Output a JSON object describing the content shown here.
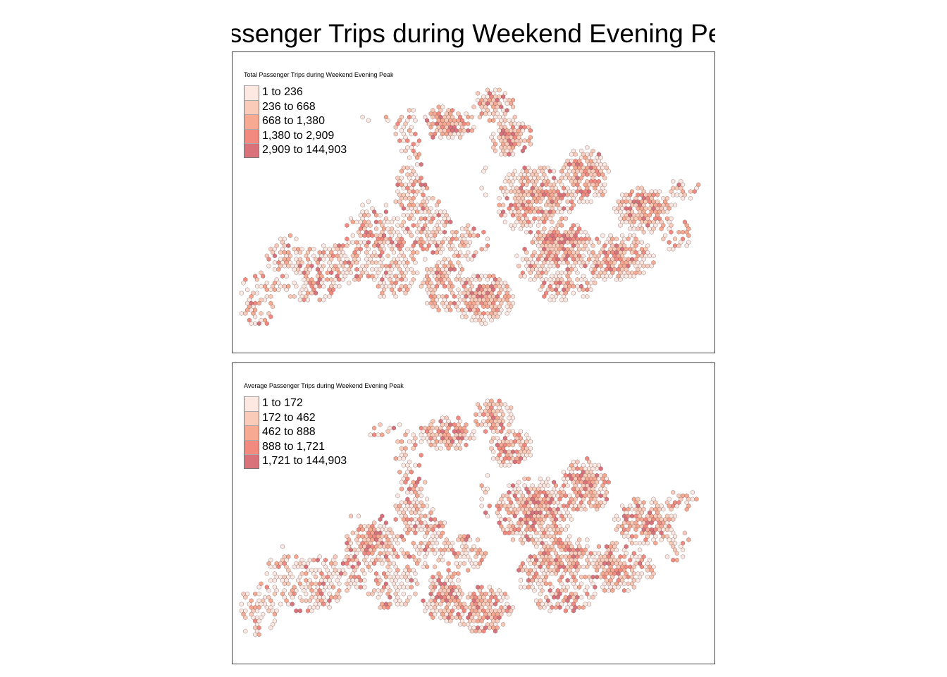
{
  "title": "Passenger Trips during Weekend Evening Peak",
  "palette": {
    "class_colors": [
      "#fde8e2",
      "#fbcbb9",
      "#f8a991",
      "#f28a80",
      "#d9727a"
    ],
    "hex_stroke": "#6e5a5a"
  },
  "maps": [
    {
      "legend_title": "Total Passenger Trips during Weekend Evening Peak",
      "classes": [
        {
          "label": "1 to 236",
          "color": "#fde8e2"
        },
        {
          "label": "236 to 668",
          "color": "#fbcbb9"
        },
        {
          "label": "668 to 1,380",
          "color": "#f8a991"
        },
        {
          "label": "1,380 to 2,909",
          "color": "#f28a80"
        },
        {
          "label": "2,909 to 144,903",
          "color": "#d9727a"
        }
      ]
    },
    {
      "legend_title": "Average Passenger Trips during Weekend Evening Peak",
      "classes": [
        {
          "label": "1 to 172",
          "color": "#fde8e2"
        },
        {
          "label": "172 to 462",
          "color": "#fbcbb9"
        },
        {
          "label": "462 to 888",
          "color": "#f8a991"
        },
        {
          "label": "888 to 1,721",
          "color": "#f28a80"
        },
        {
          "label": "1,721 to 144,903",
          "color": "#d9727a"
        }
      ]
    }
  ]
}
